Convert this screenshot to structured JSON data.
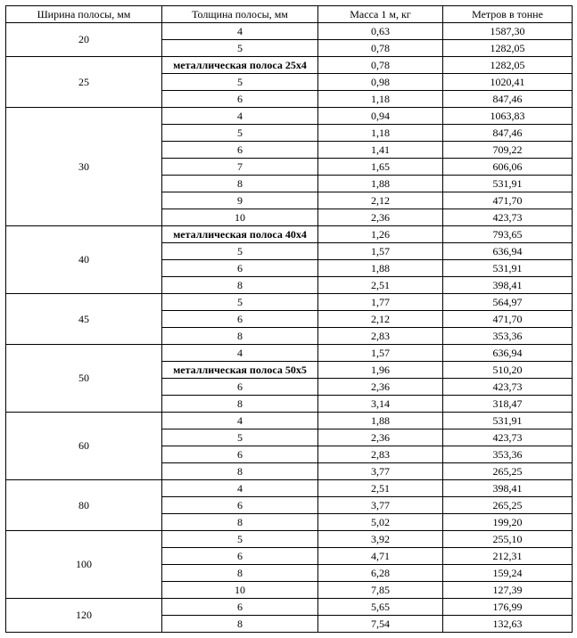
{
  "table": {
    "headers": [
      "Ширина полосы, мм",
      "Толщина полосы, мм",
      "Масса 1 м, кг",
      "Метров в тонне"
    ],
    "groups": [
      {
        "width": "20",
        "rows": [
          {
            "thickness": "4",
            "mass": "0,63",
            "mpt": "1587,30"
          },
          {
            "thickness": "5",
            "mass": "0,78",
            "mpt": "1282,05"
          }
        ]
      },
      {
        "width": "25",
        "rows": [
          {
            "thickness": "металлическая полоса 25х4",
            "bold": true,
            "mass": "0,78",
            "mpt": "1282,05"
          },
          {
            "thickness": "5",
            "mass": "0,98",
            "mpt": "1020,41"
          },
          {
            "thickness": "6",
            "mass": "1,18",
            "mpt": "847,46"
          }
        ]
      },
      {
        "width": "30",
        "rows": [
          {
            "thickness": "4",
            "mass": "0,94",
            "mpt": "1063,83"
          },
          {
            "thickness": "5",
            "mass": "1,18",
            "mpt": "847,46"
          },
          {
            "thickness": "6",
            "mass": "1,41",
            "mpt": "709,22"
          },
          {
            "thickness": "7",
            "mass": "1,65",
            "mpt": "606,06"
          },
          {
            "thickness": "8",
            "mass": "1,88",
            "mpt": "531,91"
          },
          {
            "thickness": "9",
            "mass": "2,12",
            "mpt": "471,70"
          },
          {
            "thickness": "10",
            "mass": "2,36",
            "mpt": "423,73"
          }
        ]
      },
      {
        "width": "40",
        "rows": [
          {
            "thickness": "металлическая полоса 40х4",
            "bold": true,
            "mass": "1,26",
            "mpt": "793,65"
          },
          {
            "thickness": "5",
            "mass": "1,57",
            "mpt": "636,94"
          },
          {
            "thickness": "6",
            "mass": "1,88",
            "mpt": "531,91"
          },
          {
            "thickness": "8",
            "mass": "2,51",
            "mpt": "398,41"
          }
        ]
      },
      {
        "width": "45",
        "rows": [
          {
            "thickness": "5",
            "mass": "1,77",
            "mpt": "564,97"
          },
          {
            "thickness": "6",
            "mass": "2,12",
            "mpt": "471,70"
          },
          {
            "thickness": "8",
            "mass": "2,83",
            "mpt": "353,36"
          }
        ]
      },
      {
        "width": "50",
        "rows": [
          {
            "thickness": "4",
            "mass": "1,57",
            "mpt": "636,94"
          },
          {
            "thickness": "металлическая полоса 50х5",
            "bold": true,
            "mass": "1,96",
            "mpt": "510,20"
          },
          {
            "thickness": "6",
            "mass": "2,36",
            "mpt": "423,73"
          },
          {
            "thickness": "8",
            "mass": "3,14",
            "mpt": "318,47"
          }
        ]
      },
      {
        "width": "60",
        "rows": [
          {
            "thickness": "4",
            "mass": "1,88",
            "mpt": "531,91"
          },
          {
            "thickness": "5",
            "mass": "2,36",
            "mpt": "423,73"
          },
          {
            "thickness": "6",
            "mass": "2,83",
            "mpt": "353,36"
          },
          {
            "thickness": "8",
            "mass": "3,77",
            "mpt": "265,25"
          }
        ]
      },
      {
        "width": "80",
        "rows": [
          {
            "thickness": "4",
            "mass": "2,51",
            "mpt": "398,41"
          },
          {
            "thickness": "6",
            "mass": "3,77",
            "mpt": "265,25"
          },
          {
            "thickness": "8",
            "mass": "5,02",
            "mpt": "199,20"
          }
        ]
      },
      {
        "width": "100",
        "rows": [
          {
            "thickness": "5",
            "mass": "3,92",
            "mpt": "255,10"
          },
          {
            "thickness": "6",
            "mass": "4,71",
            "mpt": "212,31"
          },
          {
            "thickness": "8",
            "mass": "6,28",
            "mpt": "159,24"
          },
          {
            "thickness": "10",
            "mass": "7,85",
            "mpt": "127,39"
          }
        ]
      },
      {
        "width": "120",
        "rows": [
          {
            "thickness": "6",
            "mass": "5,65",
            "mpt": "176,99"
          },
          {
            "thickness": "8",
            "mass": "7,54",
            "mpt": "132,63"
          }
        ]
      }
    ]
  }
}
